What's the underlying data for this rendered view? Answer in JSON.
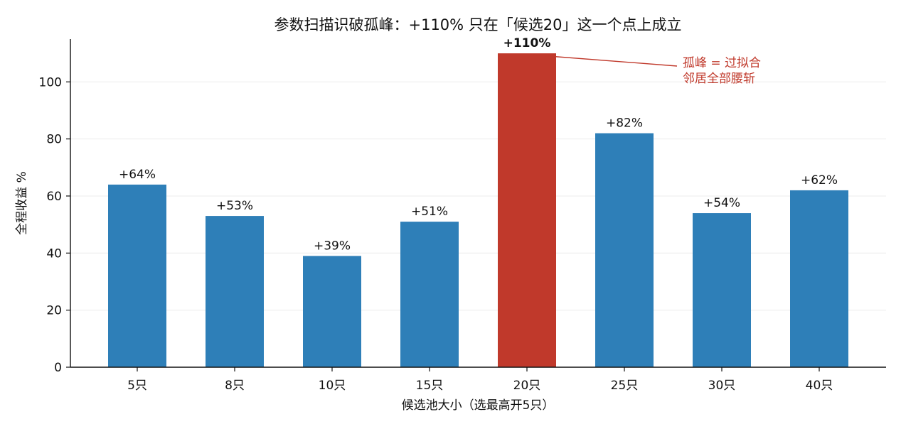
{
  "colors": {
    "normal": "#2e7fb8",
    "highlight": "#c0392b",
    "grid": "#ebebeb",
    "axis": "#111111"
  },
  "chart_data": {
    "type": "bar",
    "title": "参数扫描识破孤峰：+110% 只在「候选20」这一个点上成立",
    "xlabel": "候选池大小（选最高开5只）",
    "ylabel": "全程收益 %",
    "categories": [
      "5只",
      "8只",
      "10只",
      "15只",
      "20只",
      "25只",
      "30只",
      "40只"
    ],
    "values": [
      64,
      53,
      39,
      51,
      110,
      82,
      54,
      62
    ],
    "value_labels": [
      "+64%",
      "+53%",
      "+39%",
      "+51%",
      "+110%",
      "+82%",
      "+54%",
      "+62%"
    ],
    "highlight_index": 4,
    "ylim": [
      0,
      115
    ],
    "yticks": [
      0,
      20,
      40,
      60,
      80,
      100
    ],
    "grid": "horizontal",
    "annotation": {
      "lines": [
        "孤峰 = 过拟合",
        "邻居全部腰斩"
      ],
      "target_index": 4
    }
  }
}
